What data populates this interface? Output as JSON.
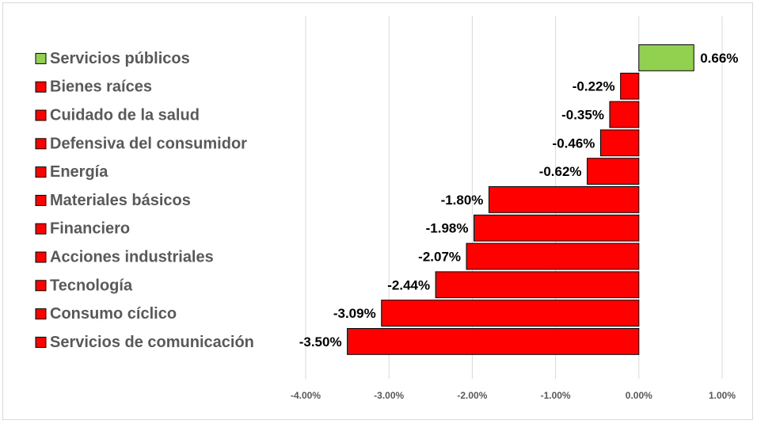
{
  "chart_data": {
    "type": "bar",
    "orientation": "horizontal",
    "categories": [
      "Servicios públicos",
      "Bienes raíces",
      "Cuidado de la salud",
      "Defensiva del consumidor",
      "Energía",
      "Materiales básicos",
      "Financiero",
      "Acciones industriales",
      "Tecnología",
      "Consumo cíclico",
      "Servicios de comunicación"
    ],
    "values": [
      0.66,
      -0.22,
      -0.35,
      -0.46,
      -0.62,
      -1.8,
      -1.98,
      -2.07,
      -2.44,
      -3.09,
      -3.5
    ],
    "data_labels": [
      "0.66%",
      "-0.22%",
      "-0.35%",
      "-0.46%",
      "-0.62%",
      "-1.80%",
      "-1.98%",
      "-2.07%",
      "-2.44%",
      "-3.09%",
      "-3.50%"
    ],
    "xlim": [
      -4,
      1
    ],
    "x_ticks": [
      -4,
      -3,
      -2,
      -1,
      0,
      1
    ],
    "x_tick_labels": [
      "-4.00%",
      "-3.00%",
      "-2.00%",
      "-1.00%",
      "0.00%",
      "1.00%"
    ],
    "title": "",
    "xlabel": "",
    "ylabel": "",
    "grid": "vertical",
    "legend_placement": "left",
    "colors": {
      "positive": "#92d050",
      "negative": "#ff0000",
      "bar_border": "#000000",
      "grid": "#d9d9d9",
      "label_text": "#595959"
    }
  }
}
